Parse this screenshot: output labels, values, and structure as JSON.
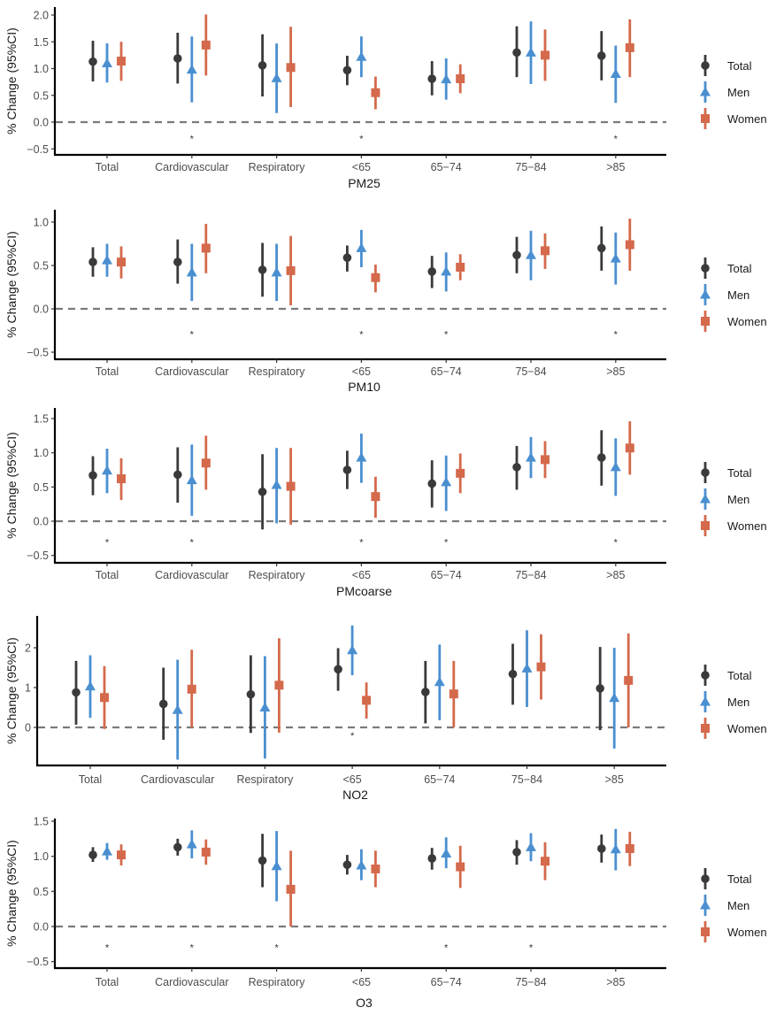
{
  "figure": {
    "ylabel": "% Change (95%CI)",
    "categories": [
      "Total",
      "Cardiovascular",
      "Respiratory",
      "<65",
      "65-74",
      "75-84",
      ">85"
    ],
    "category_tick_labels": [
      "Total",
      "Cardiovascular",
      "Respiratory",
      "<65",
      "65−74",
      "75−84",
      ">85"
    ],
    "legend": [
      {
        "name": "Total",
        "color": "#3a3a3a",
        "shape": "circle"
      },
      {
        "name": "Men",
        "color": "#4a8fd0",
        "shape": "triangle"
      },
      {
        "name": "Women",
        "color": "#d4694b",
        "shape": "square"
      }
    ],
    "reference_line": 0,
    "significance_marker": "*"
  },
  "chart_data": [
    {
      "type": "errorbar",
      "title": "PM25",
      "xlabel": "PM25",
      "ylabel": "% Change (95%CI)",
      "ylim": [
        -0.55,
        2.05
      ],
      "yticks": [
        -0.5,
        0.0,
        0.5,
        1.0,
        1.5,
        2.0
      ],
      "ytick_labels": [
        "−0.5",
        "0.0",
        "0.5",
        "1.0",
        "1.5",
        "2.0"
      ],
      "categories": [
        "Total",
        "Cardiovascular",
        "Respiratory",
        "<65",
        "65-74",
        "75-84",
        ">85"
      ],
      "series": [
        {
          "name": "Total",
          "est": [
            1.13,
            1.19,
            1.06,
            0.97,
            0.81,
            1.3,
            1.24
          ],
          "lo": [
            0.76,
            0.72,
            0.48,
            0.69,
            0.5,
            0.84,
            0.78
          ],
          "hi": [
            1.52,
            1.67,
            1.64,
            1.24,
            1.14,
            1.79,
            1.7
          ]
        },
        {
          "name": "Men",
          "est": [
            1.1,
            0.98,
            0.82,
            1.22,
            0.8,
            1.3,
            0.9
          ],
          "lo": [
            0.74,
            0.37,
            0.17,
            0.84,
            0.42,
            0.71,
            0.36
          ],
          "hi": [
            1.47,
            1.6,
            1.47,
            1.6,
            1.19,
            1.88,
            1.43
          ]
        },
        {
          "name": "Women",
          "est": [
            1.14,
            1.44,
            1.02,
            0.55,
            0.81,
            1.25,
            1.39
          ],
          "lo": [
            0.77,
            0.87,
            0.28,
            0.24,
            0.54,
            0.77,
            0.84
          ],
          "hi": [
            1.5,
            2.01,
            1.78,
            0.85,
            1.08,
            1.73,
            1.92
          ]
        }
      ],
      "significant": [
        false,
        true,
        false,
        true,
        false,
        false,
        true
      ]
    },
    {
      "type": "errorbar",
      "title": "PM10",
      "xlabel": "PM10",
      "ylabel": "% Change (95%CI)",
      "ylim": [
        -0.58,
        1.12
      ],
      "yticks": [
        -0.5,
        0.0,
        0.5,
        1.0
      ],
      "ytick_labels": [
        "−0.5",
        "0.0",
        "0.5",
        "1.0"
      ],
      "categories": [
        "Total",
        "Cardiovascular",
        "Respiratory",
        "<65",
        "65-74",
        "75-84",
        ">85"
      ],
      "series": [
        {
          "name": "Total",
          "est": [
            0.54,
            0.54,
            0.45,
            0.59,
            0.43,
            0.62,
            0.7
          ],
          "lo": [
            0.37,
            0.29,
            0.14,
            0.43,
            0.24,
            0.41,
            0.44
          ],
          "hi": [
            0.71,
            0.8,
            0.76,
            0.73,
            0.61,
            0.83,
            0.95
          ]
        },
        {
          "name": "Men",
          "est": [
            0.56,
            0.42,
            0.42,
            0.7,
            0.43,
            0.62,
            0.58
          ],
          "lo": [
            0.37,
            0.09,
            0.09,
            0.48,
            0.2,
            0.33,
            0.28
          ],
          "hi": [
            0.75,
            0.75,
            0.75,
            0.91,
            0.65,
            0.9,
            0.88
          ]
        },
        {
          "name": "Women",
          "est": [
            0.54,
            0.7,
            0.44,
            0.36,
            0.48,
            0.67,
            0.74
          ],
          "lo": [
            0.35,
            0.41,
            0.04,
            0.19,
            0.33,
            0.46,
            0.44
          ],
          "hi": [
            0.72,
            0.98,
            0.84,
            0.51,
            0.63,
            0.87,
            1.04
          ]
        }
      ],
      "significant": [
        false,
        true,
        false,
        true,
        true,
        false,
        true
      ]
    },
    {
      "type": "errorbar",
      "title": "PMcoarse",
      "xlabel": "PMcoarse",
      "ylabel": "% Change (95%CI)",
      "ylim": [
        -0.58,
        1.55
      ],
      "yticks": [
        -0.5,
        0.0,
        0.5,
        1.0,
        1.5
      ],
      "ytick_labels": [
        "−0.5",
        "0.0",
        "0.5",
        "1.0",
        "1.5"
      ],
      "categories": [
        "Total",
        "Cardiovascular",
        "Respiratory",
        "<65",
        "65-74",
        "75-84",
        ">85"
      ],
      "series": [
        {
          "name": "Total",
          "est": [
            0.67,
            0.68,
            0.43,
            0.75,
            0.55,
            0.79,
            0.93
          ],
          "lo": [
            0.38,
            0.27,
            -0.12,
            0.47,
            0.2,
            0.46,
            0.52
          ],
          "hi": [
            0.95,
            1.08,
            0.98,
            1.03,
            0.89,
            1.1,
            1.33
          ]
        },
        {
          "name": "Men",
          "est": [
            0.74,
            0.6,
            0.53,
            0.93,
            0.57,
            0.93,
            0.79
          ],
          "lo": [
            0.41,
            0.08,
            -0.03,
            0.56,
            0.15,
            0.63,
            0.37
          ],
          "hi": [
            1.06,
            1.12,
            1.07,
            1.28,
            0.96,
            1.23,
            1.21
          ]
        },
        {
          "name": "Women",
          "est": [
            0.62,
            0.85,
            0.51,
            0.36,
            0.7,
            0.9,
            1.07
          ],
          "lo": [
            0.31,
            0.46,
            -0.05,
            0.05,
            0.41,
            0.63,
            0.68
          ],
          "hi": [
            0.92,
            1.25,
            1.07,
            0.65,
            0.99,
            1.17,
            1.46
          ]
        }
      ],
      "significant": [
        true,
        true,
        false,
        true,
        true,
        false,
        true
      ]
    },
    {
      "type": "errorbar",
      "title": "NO2",
      "xlabel": "NO2",
      "ylabel": "% Change (95%CI)",
      "ylim": [
        -0.95,
        2.75
      ],
      "yticks": [
        0,
        1,
        2
      ],
      "ytick_labels": [
        "0",
        "1",
        "2"
      ],
      "categories": [
        "Total",
        "Cardiovascular",
        "Respiratory",
        "<65",
        "65-74",
        "75-84",
        ">85"
      ],
      "series": [
        {
          "name": "Total",
          "est": [
            0.88,
            0.59,
            0.83,
            1.46,
            0.89,
            1.34,
            0.98
          ],
          "lo": [
            0.07,
            -0.31,
            -0.14,
            0.92,
            0.1,
            0.57,
            -0.07
          ],
          "hi": [
            1.67,
            1.5,
            1.81,
            1.99,
            1.67,
            2.1,
            2.02
          ]
        },
        {
          "name": "Men",
          "est": [
            1.03,
            0.44,
            0.5,
            1.94,
            1.14,
            1.48,
            0.74
          ],
          "lo": [
            0.24,
            -0.81,
            -0.78,
            1.31,
            0.18,
            0.51,
            -0.53
          ],
          "hi": [
            1.81,
            1.7,
            1.79,
            2.56,
            2.08,
            2.44,
            2.0
          ]
        },
        {
          "name": "Women",
          "est": [
            0.75,
            0.96,
            1.06,
            0.68,
            0.84,
            1.52,
            1.18
          ],
          "lo": [
            -0.04,
            0.0,
            -0.13,
            0.22,
            0.0,
            0.7,
            0.0
          ],
          "hi": [
            1.54,
            1.95,
            2.24,
            1.13,
            1.67,
            2.34,
            2.36
          ]
        }
      ],
      "significant": [
        false,
        false,
        false,
        true,
        false,
        false,
        false
      ]
    },
    {
      "type": "errorbar",
      "title": "O3",
      "xlabel": "O3",
      "ylabel": "% Change (95%CI)",
      "ylim": [
        -0.58,
        1.55
      ],
      "yticks": [
        -0.5,
        0.0,
        0.5,
        1.0,
        1.5
      ],
      "ytick_labels": [
        "−0.5",
        "0.0",
        "0.5",
        "1.0",
        "1.5"
      ],
      "categories": [
        "Total",
        "Cardiovascular",
        "Respiratory",
        "<65",
        "65-74",
        "75-84",
        ">85"
      ],
      "series": [
        {
          "name": "Total",
          "est": [
            1.02,
            1.13,
            0.94,
            0.88,
            0.97,
            1.06,
            1.11
          ],
          "lo": [
            0.92,
            1.01,
            0.56,
            0.74,
            0.81,
            0.88,
            0.91
          ],
          "hi": [
            1.13,
            1.25,
            1.32,
            1.02,
            1.12,
            1.23,
            1.31
          ]
        },
        {
          "name": "Men",
          "est": [
            1.07,
            1.17,
            0.86,
            0.87,
            1.04,
            1.13,
            1.1
          ],
          "lo": [
            0.95,
            0.97,
            0.36,
            0.66,
            0.83,
            0.93,
            0.8
          ],
          "hi": [
            1.19,
            1.37,
            1.36,
            1.1,
            1.27,
            1.33,
            1.39
          ]
        },
        {
          "name": "Women",
          "est": [
            1.02,
            1.06,
            0.53,
            0.82,
            0.85,
            0.93,
            1.11
          ],
          "lo": [
            0.87,
            0.88,
            0.0,
            0.56,
            0.55,
            0.66,
            0.86
          ],
          "hi": [
            1.17,
            1.24,
            1.08,
            1.08,
            1.15,
            1.2,
            1.35
          ]
        }
      ],
      "significant": [
        true,
        true,
        true,
        false,
        true,
        true,
        false
      ]
    }
  ]
}
